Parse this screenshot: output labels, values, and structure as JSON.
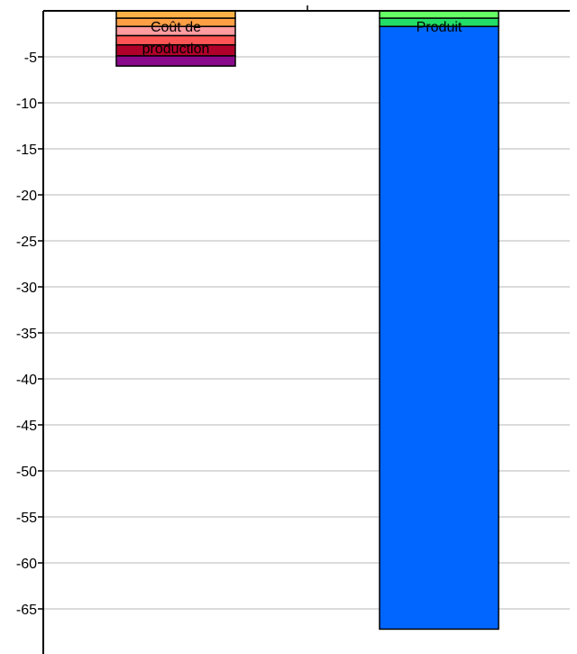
{
  "chart_data": {
    "type": "bar",
    "stacked": true,
    "categories": [
      "Coût de production",
      "Produit"
    ],
    "category_label_lines": [
      [
        "Coût de",
        "production"
      ],
      [
        "Produit"
      ]
    ],
    "series": [
      {
        "color": "#ffb347",
        "values": [
          -0.8,
          0
        ]
      },
      {
        "color": "#ff9f45",
        "values": [
          -0.9,
          0
        ]
      },
      {
        "color": "#ff9ca0",
        "values": [
          -1.0,
          0
        ]
      },
      {
        "color": "#ff5555",
        "values": [
          -1.0,
          0
        ]
      },
      {
        "color": "#b0002a",
        "values": [
          -1.2,
          0
        ]
      },
      {
        "color": "#8b0a8b",
        "values": [
          -1.1,
          0
        ]
      },
      {
        "color": "#66ff66",
        "values": [
          0,
          -0.8
        ]
      },
      {
        "color": "#22dd66",
        "values": [
          0,
          -0.9
        ]
      },
      {
        "color": "#0066ff",
        "values": [
          0,
          -65.5
        ]
      }
    ],
    "ylim": [
      -70,
      0
    ],
    "yticks": [
      -5,
      -10,
      -15,
      -20,
      -25,
      -30,
      -35,
      -40,
      -45,
      -50,
      -55,
      -60,
      -65
    ],
    "ytick_labels": [
      "-5",
      "-10",
      "-15",
      "-20",
      "-25",
      "-30",
      "-35",
      "-40",
      "-45",
      "-50",
      "-55",
      "-60",
      "-65"
    ],
    "grid": true
  }
}
